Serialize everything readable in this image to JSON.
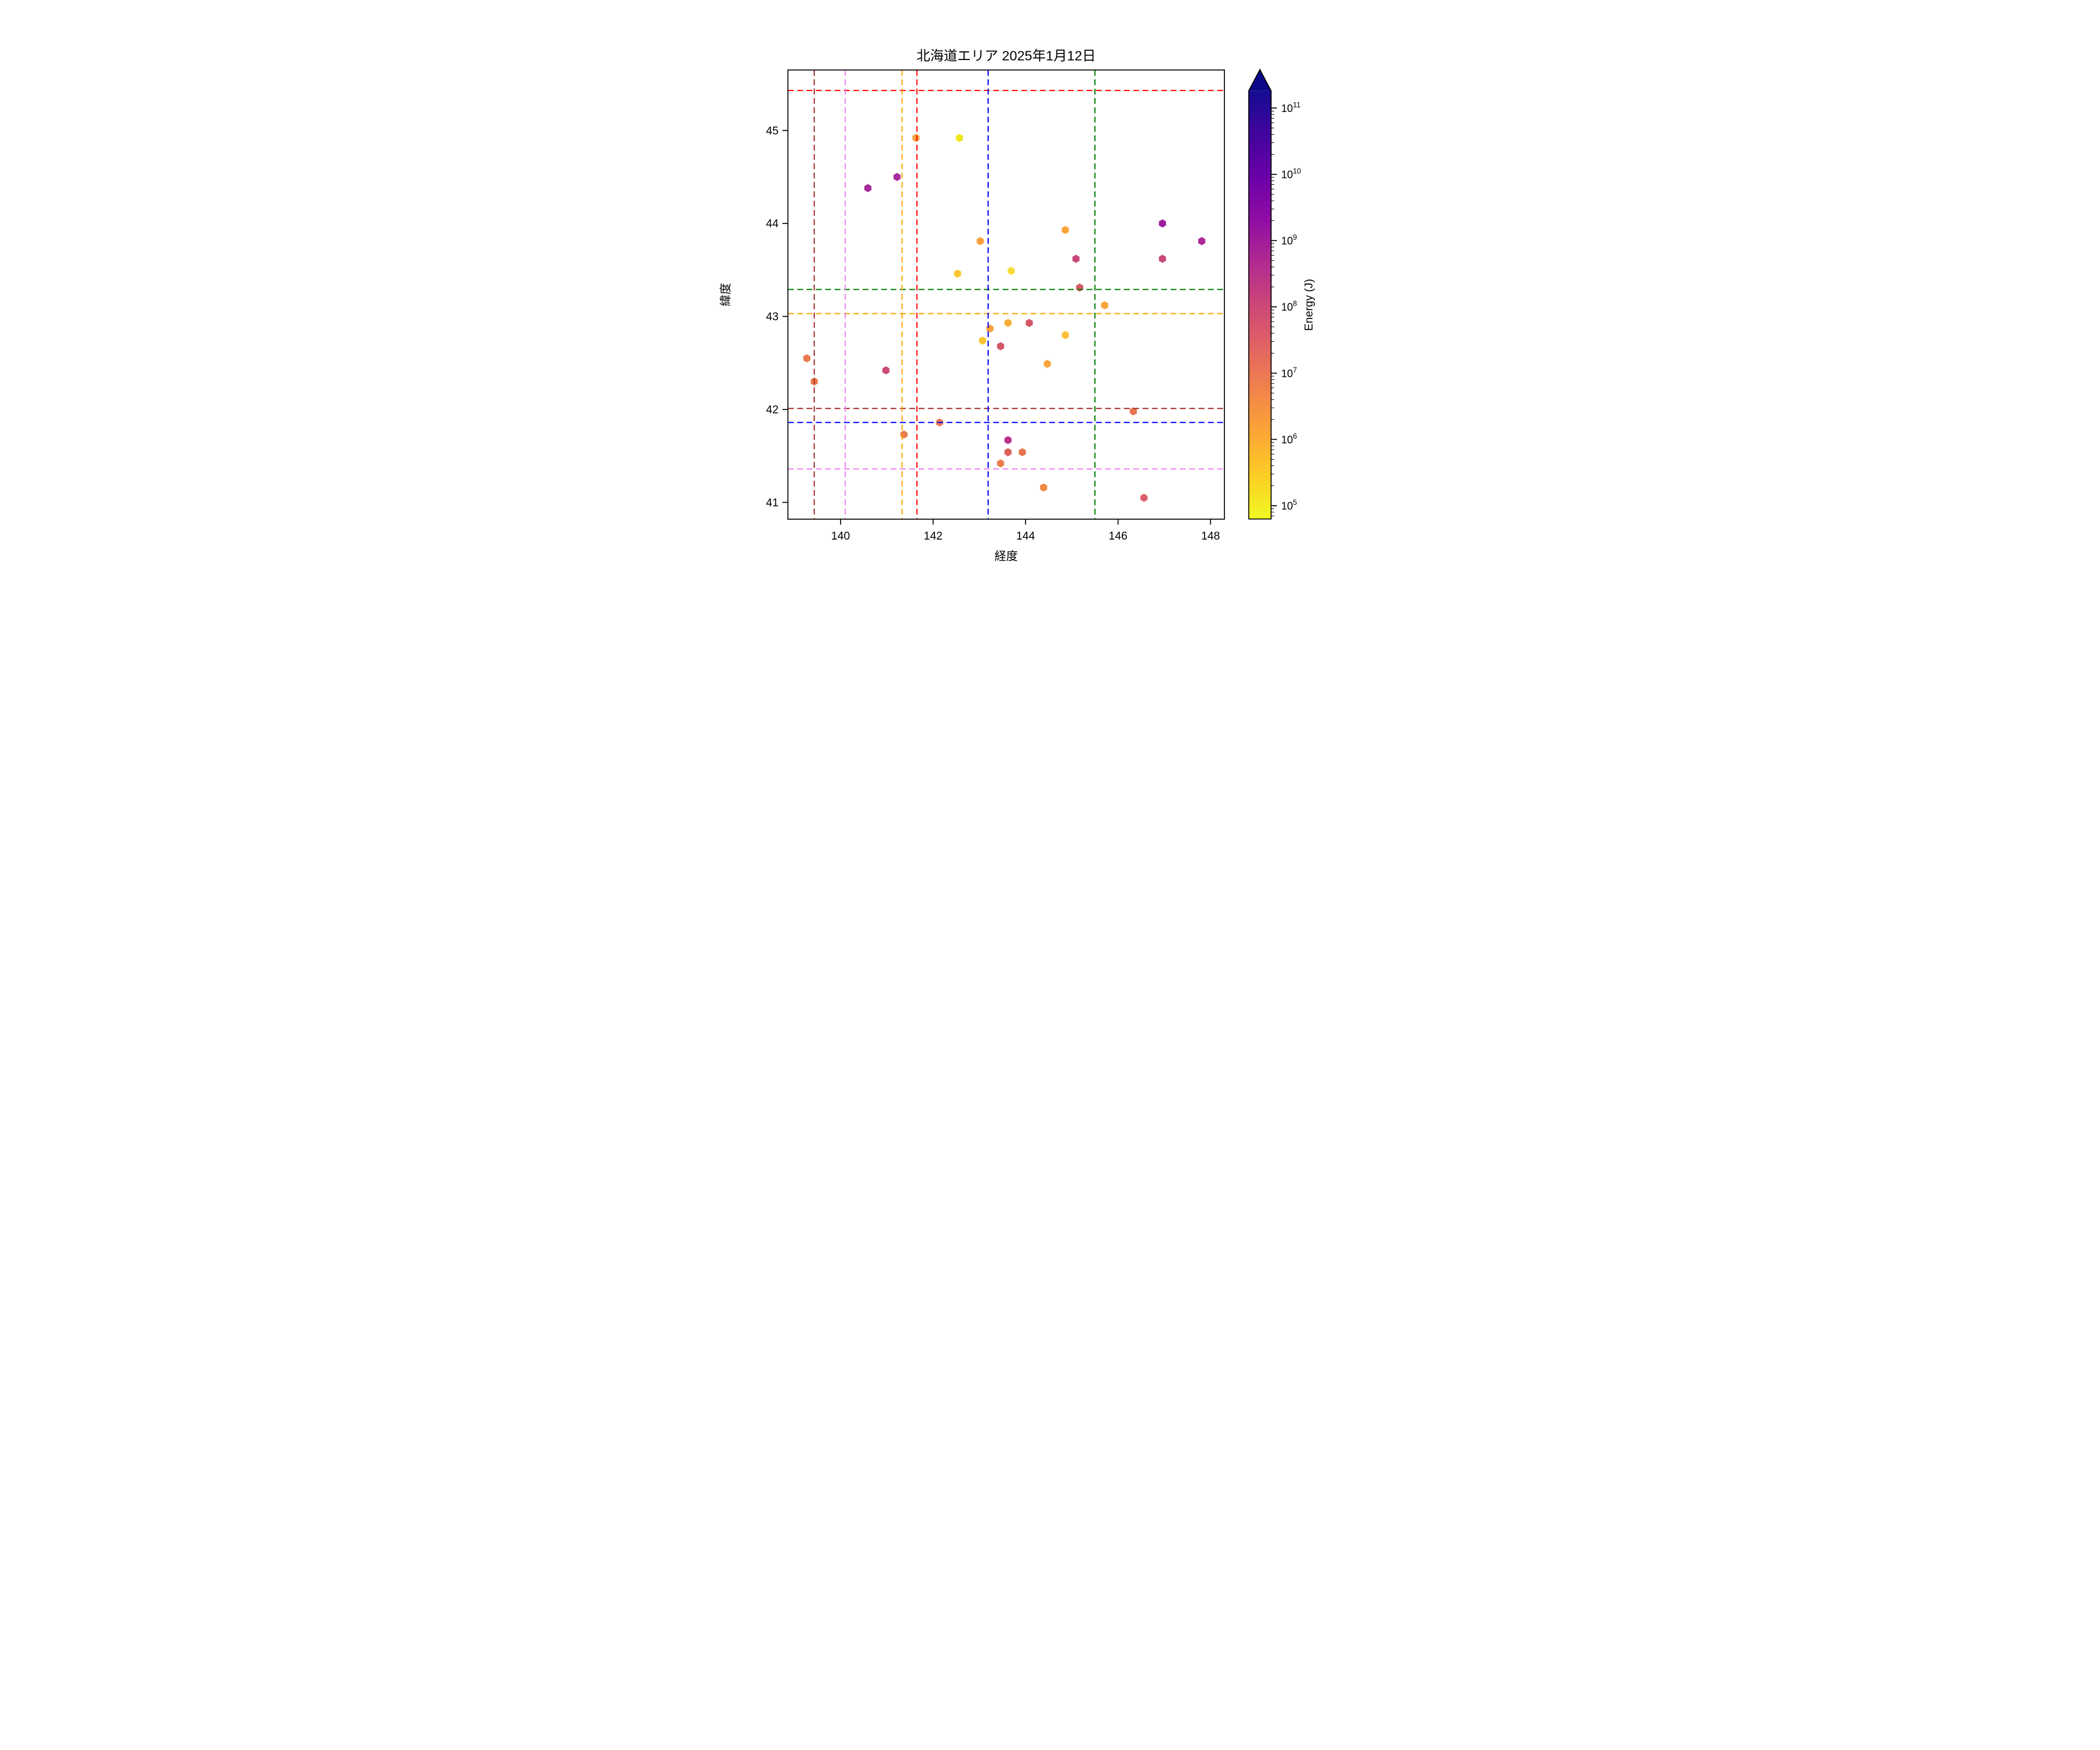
{
  "chart_data": {
    "type": "scatter",
    "title": "北海道エリア 2025年1月12日",
    "xlabel": "経度",
    "ylabel": "緯度",
    "xlim": [
      138.86,
      148.3
    ],
    "ylim": [
      40.82,
      45.65
    ],
    "xticks": [
      140,
      142,
      144,
      146,
      148
    ],
    "yticks": [
      41,
      42,
      43,
      44,
      45
    ],
    "grid": false,
    "marker": "hexagon",
    "points": [
      {
        "lon": 141.63,
        "lat": 44.92,
        "color": "#F9A03C",
        "energy_j": 1100000.0
      },
      {
        "lon": 142.57,
        "lat": 44.92,
        "color": "#EFE51F",
        "energy_j": 90000.0
      },
      {
        "lon": 141.22,
        "lat": 44.5,
        "color": "#A62D9B",
        "energy_j": 800000000.0
      },
      {
        "lon": 140.59,
        "lat": 44.38,
        "color": "#A62D9B",
        "energy_j": 800000000.0
      },
      {
        "lon": 146.96,
        "lat": 44.0,
        "color": "#9C1DA0",
        "energy_j": 1100000000.0
      },
      {
        "lon": 147.81,
        "lat": 43.81,
        "color": "#AC2795",
        "energy_j": 500000000.0
      },
      {
        "lon": 144.86,
        "lat": 43.93,
        "color": "#F9A43B",
        "energy_j": 1100000.0
      },
      {
        "lon": 143.02,
        "lat": 43.81,
        "color": "#F9A03C",
        "energy_j": 1200000.0
      },
      {
        "lon": 145.09,
        "lat": 43.62,
        "color": "#C6477B",
        "energy_j": 80000000.0
      },
      {
        "lon": 146.96,
        "lat": 43.62,
        "color": "#C84878",
        "energy_j": 70000000.0
      },
      {
        "lon": 142.53,
        "lat": 43.46,
        "color": "#FBC733",
        "energy_j": 300000.0
      },
      {
        "lon": 143.69,
        "lat": 43.49,
        "color": "#F7DB38",
        "energy_j": 160000.0
      },
      {
        "lon": 145.17,
        "lat": 43.31,
        "color": "#D65A64",
        "energy_j": 25000000.0
      },
      {
        "lon": 145.71,
        "lat": 43.12,
        "color": "#F9A43B",
        "energy_j": 1100000.0
      },
      {
        "lon": 143.23,
        "lat": 42.87,
        "color": "#F9A03C",
        "energy_j": 1200000.0
      },
      {
        "lon": 143.62,
        "lat": 42.93,
        "color": "#FAAC38",
        "energy_j": 900000.0
      },
      {
        "lon": 144.08,
        "lat": 42.93,
        "color": "#D05666",
        "energy_j": 30000000.0
      },
      {
        "lon": 143.07,
        "lat": 42.74,
        "color": "#FBC331",
        "energy_j": 400000.0
      },
      {
        "lon": 143.46,
        "lat": 42.68,
        "color": "#D05666",
        "energy_j": 30000000.0
      },
      {
        "lon": 144.86,
        "lat": 42.8,
        "color": "#FBBE36",
        "energy_j": 450000.0
      },
      {
        "lon": 144.47,
        "lat": 42.49,
        "color": "#F9A63B",
        "energy_j": 1100000.0
      },
      {
        "lon": 139.27,
        "lat": 42.55,
        "color": "#EB7A4F",
        "energy_j": 6000000.0
      },
      {
        "lon": 140.98,
        "lat": 42.42,
        "color": "#C94A72",
        "energy_j": 60000000.0
      },
      {
        "lon": 139.43,
        "lat": 42.3,
        "color": "#EB7A4F",
        "energy_j": 6000000.0
      },
      {
        "lon": 142.14,
        "lat": 41.86,
        "color": "#E97C51",
        "energy_j": 5500000.0
      },
      {
        "lon": 141.37,
        "lat": 41.73,
        "color": "#E97C51",
        "energy_j": 5500000.0
      },
      {
        "lon": 143.62,
        "lat": 41.67,
        "color": "#B93287",
        "energy_j": 300000000.0
      },
      {
        "lon": 143.62,
        "lat": 41.54,
        "color": "#DB6356",
        "energy_j": 20000000.0
      },
      {
        "lon": 143.93,
        "lat": 41.54,
        "color": "#E8744D",
        "energy_j": 7000000.0
      },
      {
        "lon": 143.46,
        "lat": 41.42,
        "color": "#EF7E4A",
        "energy_j": 5000000.0
      },
      {
        "lon": 144.39,
        "lat": 41.16,
        "color": "#F08A45",
        "energy_j": 3500000.0
      },
      {
        "lon": 146.33,
        "lat": 41.98,
        "color": "#E8744E",
        "energy_j": 7000000.0
      },
      {
        "lon": 146.56,
        "lat": 41.05,
        "color": "#DA5F68",
        "energy_j": 24000000.0
      }
    ],
    "reference_lines": {
      "horizontal": [
        {
          "lat": 45.43,
          "color_name": "red",
          "color": "#FF0000"
        },
        {
          "lat": 43.29,
          "color_name": "green",
          "color": "#008000"
        },
        {
          "lat": 43.03,
          "color_name": "orange",
          "color": "#FFA500"
        },
        {
          "lat": 42.01,
          "color_name": "darkred",
          "color": "#A52A2A"
        },
        {
          "lat": 41.86,
          "color_name": "blue",
          "color": "#0000FF"
        },
        {
          "lat": 41.36,
          "color_name": "violet",
          "color": "#EE82EE"
        }
      ],
      "vertical": [
        {
          "lon": 139.43,
          "color_name": "darkred",
          "color": "#A52A2A"
        },
        {
          "lon": 140.1,
          "color_name": "violet",
          "color": "#EE82EE"
        },
        {
          "lon": 141.33,
          "color_name": "orange",
          "color": "#FFA500"
        },
        {
          "lon": 141.65,
          "color_name": "red",
          "color": "#FF0000"
        },
        {
          "lon": 143.19,
          "color_name": "blue",
          "color": "#0000FF"
        },
        {
          "lon": 145.5,
          "color_name": "green",
          "color": "#008000"
        }
      ]
    },
    "colorbar": {
      "label": "Energy (J)",
      "scale": "log",
      "tick_exponents": [
        5,
        6,
        7,
        8,
        9,
        10,
        11
      ],
      "log_min": 4.8,
      "log_max": 11.26,
      "extend": "max",
      "colormap": "plasma_r",
      "gradient_stops_bottom_to_top": [
        {
          "offset": 0.0,
          "color": "#F0F921"
        },
        {
          "offset": 0.1,
          "color": "#FCCE25"
        },
        {
          "offset": 0.2,
          "color": "#FCA636"
        },
        {
          "offset": 0.3,
          "color": "#F2844B"
        },
        {
          "offset": 0.4,
          "color": "#E16462"
        },
        {
          "offset": 0.5,
          "color": "#CC4778"
        },
        {
          "offset": 0.6,
          "color": "#B12A90"
        },
        {
          "offset": 0.7,
          "color": "#8F0DA4"
        },
        {
          "offset": 0.8,
          "color": "#6A00A8"
        },
        {
          "offset": 0.9,
          "color": "#41049D"
        },
        {
          "offset": 1.0,
          "color": "#150C92"
        }
      ],
      "arrow_color": "#0D0887"
    }
  }
}
